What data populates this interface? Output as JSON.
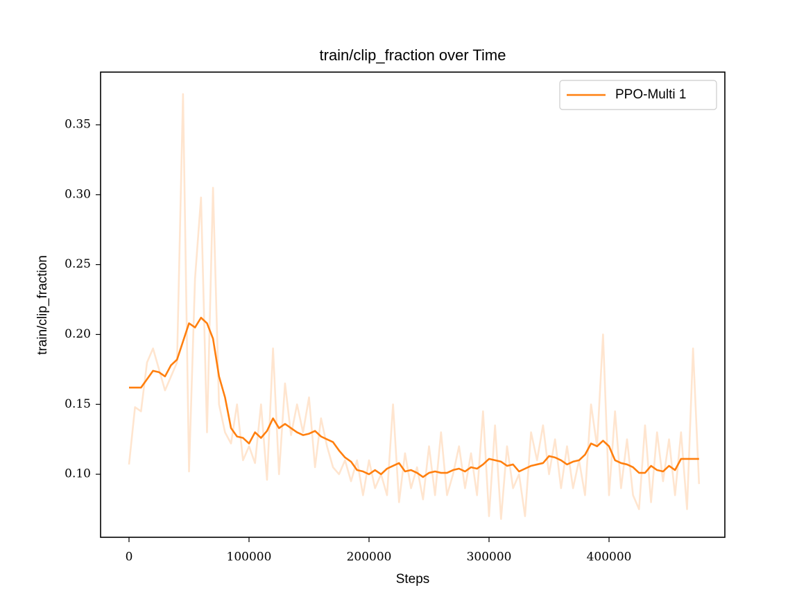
{
  "chart_data": {
    "type": "line",
    "title": "train/clip_fraction over Time",
    "xlabel": "Steps",
    "ylabel": "train/clip_fraction",
    "x": [
      0,
      5000,
      10000,
      15000,
      20000,
      25000,
      30000,
      35000,
      40000,
      45000,
      50000,
      55000,
      60000,
      65000,
      70000,
      75000,
      80000,
      85000,
      90000,
      95000,
      100000,
      105000,
      110000,
      115000,
      120000,
      125000,
      130000,
      135000,
      140000,
      145000,
      150000,
      155000,
      160000,
      165000,
      170000,
      175000,
      180000,
      185000,
      190000,
      195000,
      200000,
      205000,
      210000,
      215000,
      220000,
      225000,
      230000,
      235000,
      240000,
      245000,
      250000,
      255000,
      260000,
      265000,
      270000,
      275000,
      280000,
      285000,
      290000,
      295000,
      300000,
      305000,
      310000,
      315000,
      320000,
      325000,
      330000,
      335000,
      340000,
      345000,
      350000,
      355000,
      360000,
      365000,
      370000,
      375000,
      380000,
      385000,
      390000,
      395000,
      400000,
      405000,
      410000,
      415000,
      420000,
      425000,
      430000,
      435000,
      440000,
      445000,
      450000,
      455000,
      460000,
      465000,
      470000,
      475000
    ],
    "series": [
      {
        "color": "#ff7f0e",
        "alpha": 0.2,
        "values": [
          0.107,
          0.148,
          0.145,
          0.18,
          0.19,
          0.175,
          0.16,
          0.17,
          0.18,
          0.372,
          0.102,
          0.24,
          0.298,
          0.13,
          0.305,
          0.15,
          0.13,
          0.122,
          0.15,
          0.11,
          0.12,
          0.108,
          0.15,
          0.096,
          0.19,
          0.1,
          0.165,
          0.128,
          0.15,
          0.13,
          0.155,
          0.105,
          0.14,
          0.12,
          0.105,
          0.1,
          0.11,
          0.095,
          0.11,
          0.085,
          0.11,
          0.09,
          0.1,
          0.085,
          0.15,
          0.08,
          0.115,
          0.09,
          0.105,
          0.082,
          0.12,
          0.085,
          0.13,
          0.085,
          0.1,
          0.12,
          0.09,
          0.115,
          0.085,
          0.145,
          0.07,
          0.135,
          0.068,
          0.12,
          0.09,
          0.1,
          0.07,
          0.13,
          0.11,
          0.135,
          0.1,
          0.125,
          0.09,
          0.12,
          0.09,
          0.11,
          0.085,
          0.15,
          0.12,
          0.2,
          0.085,
          0.145,
          0.09,
          0.125,
          0.085,
          0.075,
          0.135,
          0.08,
          0.13,
          0.095,
          0.125,
          0.085,
          0.13,
          0.075,
          0.19,
          0.093
        ]
      },
      {
        "name": "PPO-Multi 1",
        "color": "#ff7f0e",
        "alpha": 1,
        "values": [
          0.162,
          0.162,
          0.162,
          0.168,
          0.174,
          0.173,
          0.17,
          0.178,
          0.182,
          0.195,
          0.208,
          0.205,
          0.212,
          0.208,
          0.197,
          0.17,
          0.155,
          0.133,
          0.127,
          0.126,
          0.122,
          0.13,
          0.126,
          0.131,
          0.14,
          0.133,
          0.136,
          0.133,
          0.13,
          0.128,
          0.129,
          0.131,
          0.127,
          0.125,
          0.123,
          0.117,
          0.112,
          0.109,
          0.103,
          0.102,
          0.1,
          0.103,
          0.1,
          0.104,
          0.106,
          0.108,
          0.102,
          0.103,
          0.101,
          0.098,
          0.101,
          0.102,
          0.101,
          0.101,
          0.103,
          0.104,
          0.102,
          0.105,
          0.104,
          0.107,
          0.111,
          0.11,
          0.109,
          0.106,
          0.107,
          0.102,
          0.104,
          0.106,
          0.107,
          0.108,
          0.113,
          0.112,
          0.11,
          0.107,
          0.109,
          0.11,
          0.114,
          0.122,
          0.12,
          0.124,
          0.12,
          0.11,
          0.108,
          0.107,
          0.105,
          0.101,
          0.101,
          0.106,
          0.103,
          0.102,
          0.106,
          0.103,
          0.111,
          0.111,
          0.111,
          0.111
        ]
      }
    ],
    "xlim": [
      -23700,
      496500
    ],
    "xticks": [
      0,
      100000,
      200000,
      300000,
      400000
    ],
    "ylim": [
      0.0549,
      0.3877
    ],
    "yticks": [
      {
        "value": 0.1,
        "label": "0.10"
      },
      0.15,
      {
        "value": 0.2,
        "label": "0.20"
      },
      0.25,
      {
        "value": 0.3,
        "label": "0.30"
      },
      0.35
    ],
    "grid": false,
    "legend": "upper right"
  }
}
